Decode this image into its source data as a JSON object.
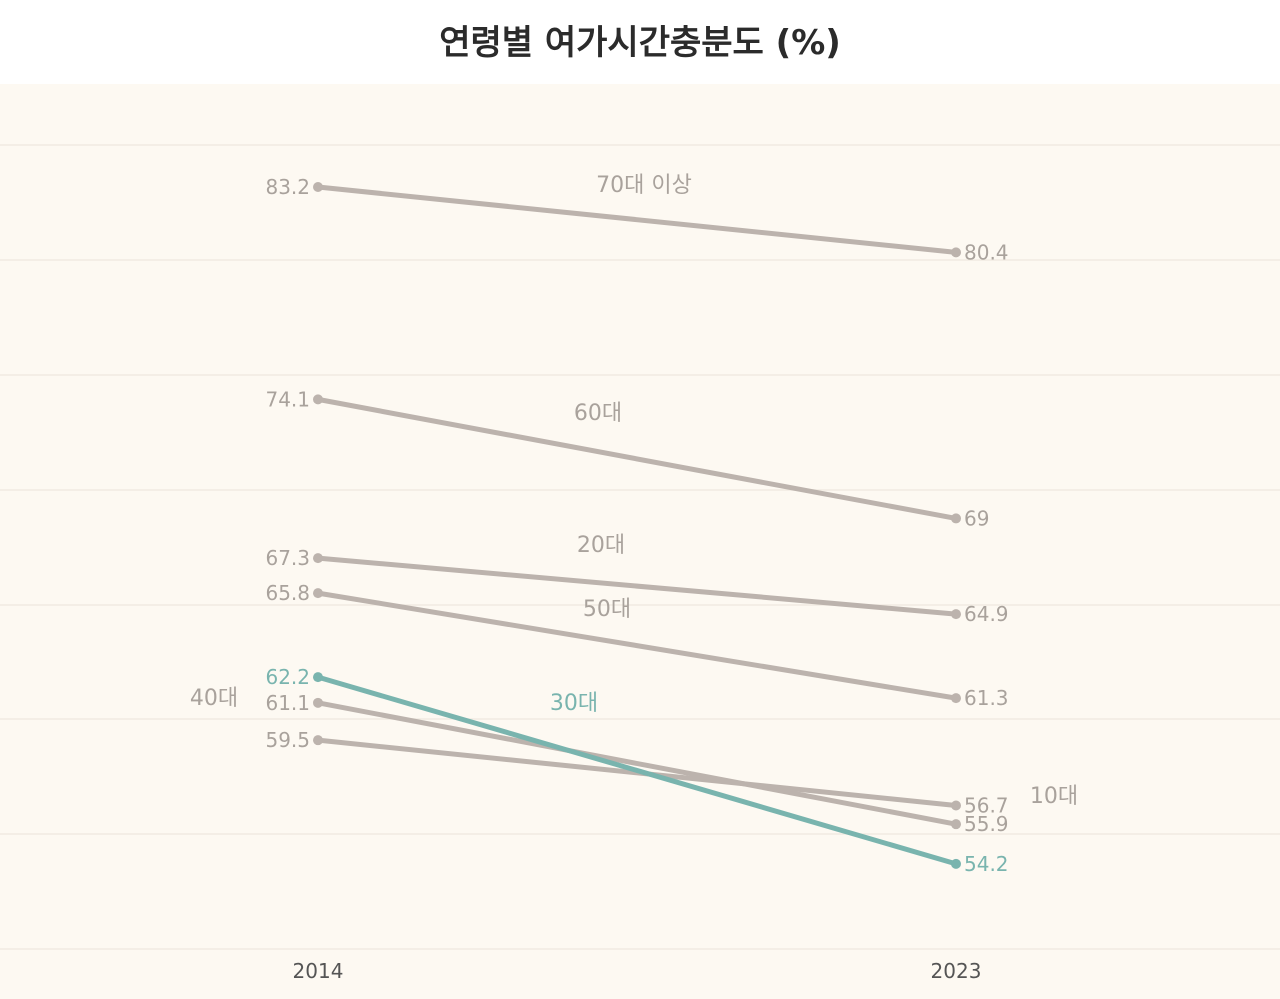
{
  "chart_data": {
    "type": "line",
    "title": "연령별 여가시간충분도 (%)",
    "x": [
      "2014",
      "2023"
    ],
    "xlabel": "",
    "ylabel": "",
    "ylim": [
      50,
      87
    ],
    "grid": true,
    "series": [
      {
        "name": "70대 이상",
        "values": [
          83.2,
          80.4
        ],
        "value_labels": [
          "83.2",
          "80.4"
        ],
        "color": "#bcb3ad",
        "highlight": false
      },
      {
        "name": "60대",
        "values": [
          74.1,
          69.0
        ],
        "value_labels": [
          "74.1",
          "69"
        ],
        "color": "#bcb3ad",
        "highlight": false
      },
      {
        "name": "20대",
        "values": [
          67.3,
          64.9
        ],
        "value_labels": [
          "67.3",
          "64.9"
        ],
        "color": "#bcb3ad",
        "highlight": false
      },
      {
        "name": "50대",
        "values": [
          65.8,
          61.3
        ],
        "value_labels": [
          "65.8",
          "61.3"
        ],
        "color": "#bcb3ad",
        "highlight": false
      },
      {
        "name": "30대",
        "values": [
          62.2,
          54.2
        ],
        "value_labels": [
          "62.2",
          "54.2"
        ],
        "color": "#79b4ae",
        "highlight": true
      },
      {
        "name": "40대",
        "values": [
          61.1,
          55.9
        ],
        "value_labels": [
          "61.1",
          "55.9"
        ],
        "color": "#bcb3ad",
        "highlight": false
      },
      {
        "name": "10대",
        "values": [
          59.5,
          56.7
        ],
        "value_labels": [
          "59.5",
          "56.7"
        ],
        "color": "#bcb3ad",
        "highlight": false
      }
    ],
    "colors": {
      "background": "#fdf9f2",
      "gridline": "#f1ebe1",
      "muted_line": "#bcb3ad",
      "muted_text": "#a9a29c",
      "highlight": "#79b4ae"
    }
  }
}
